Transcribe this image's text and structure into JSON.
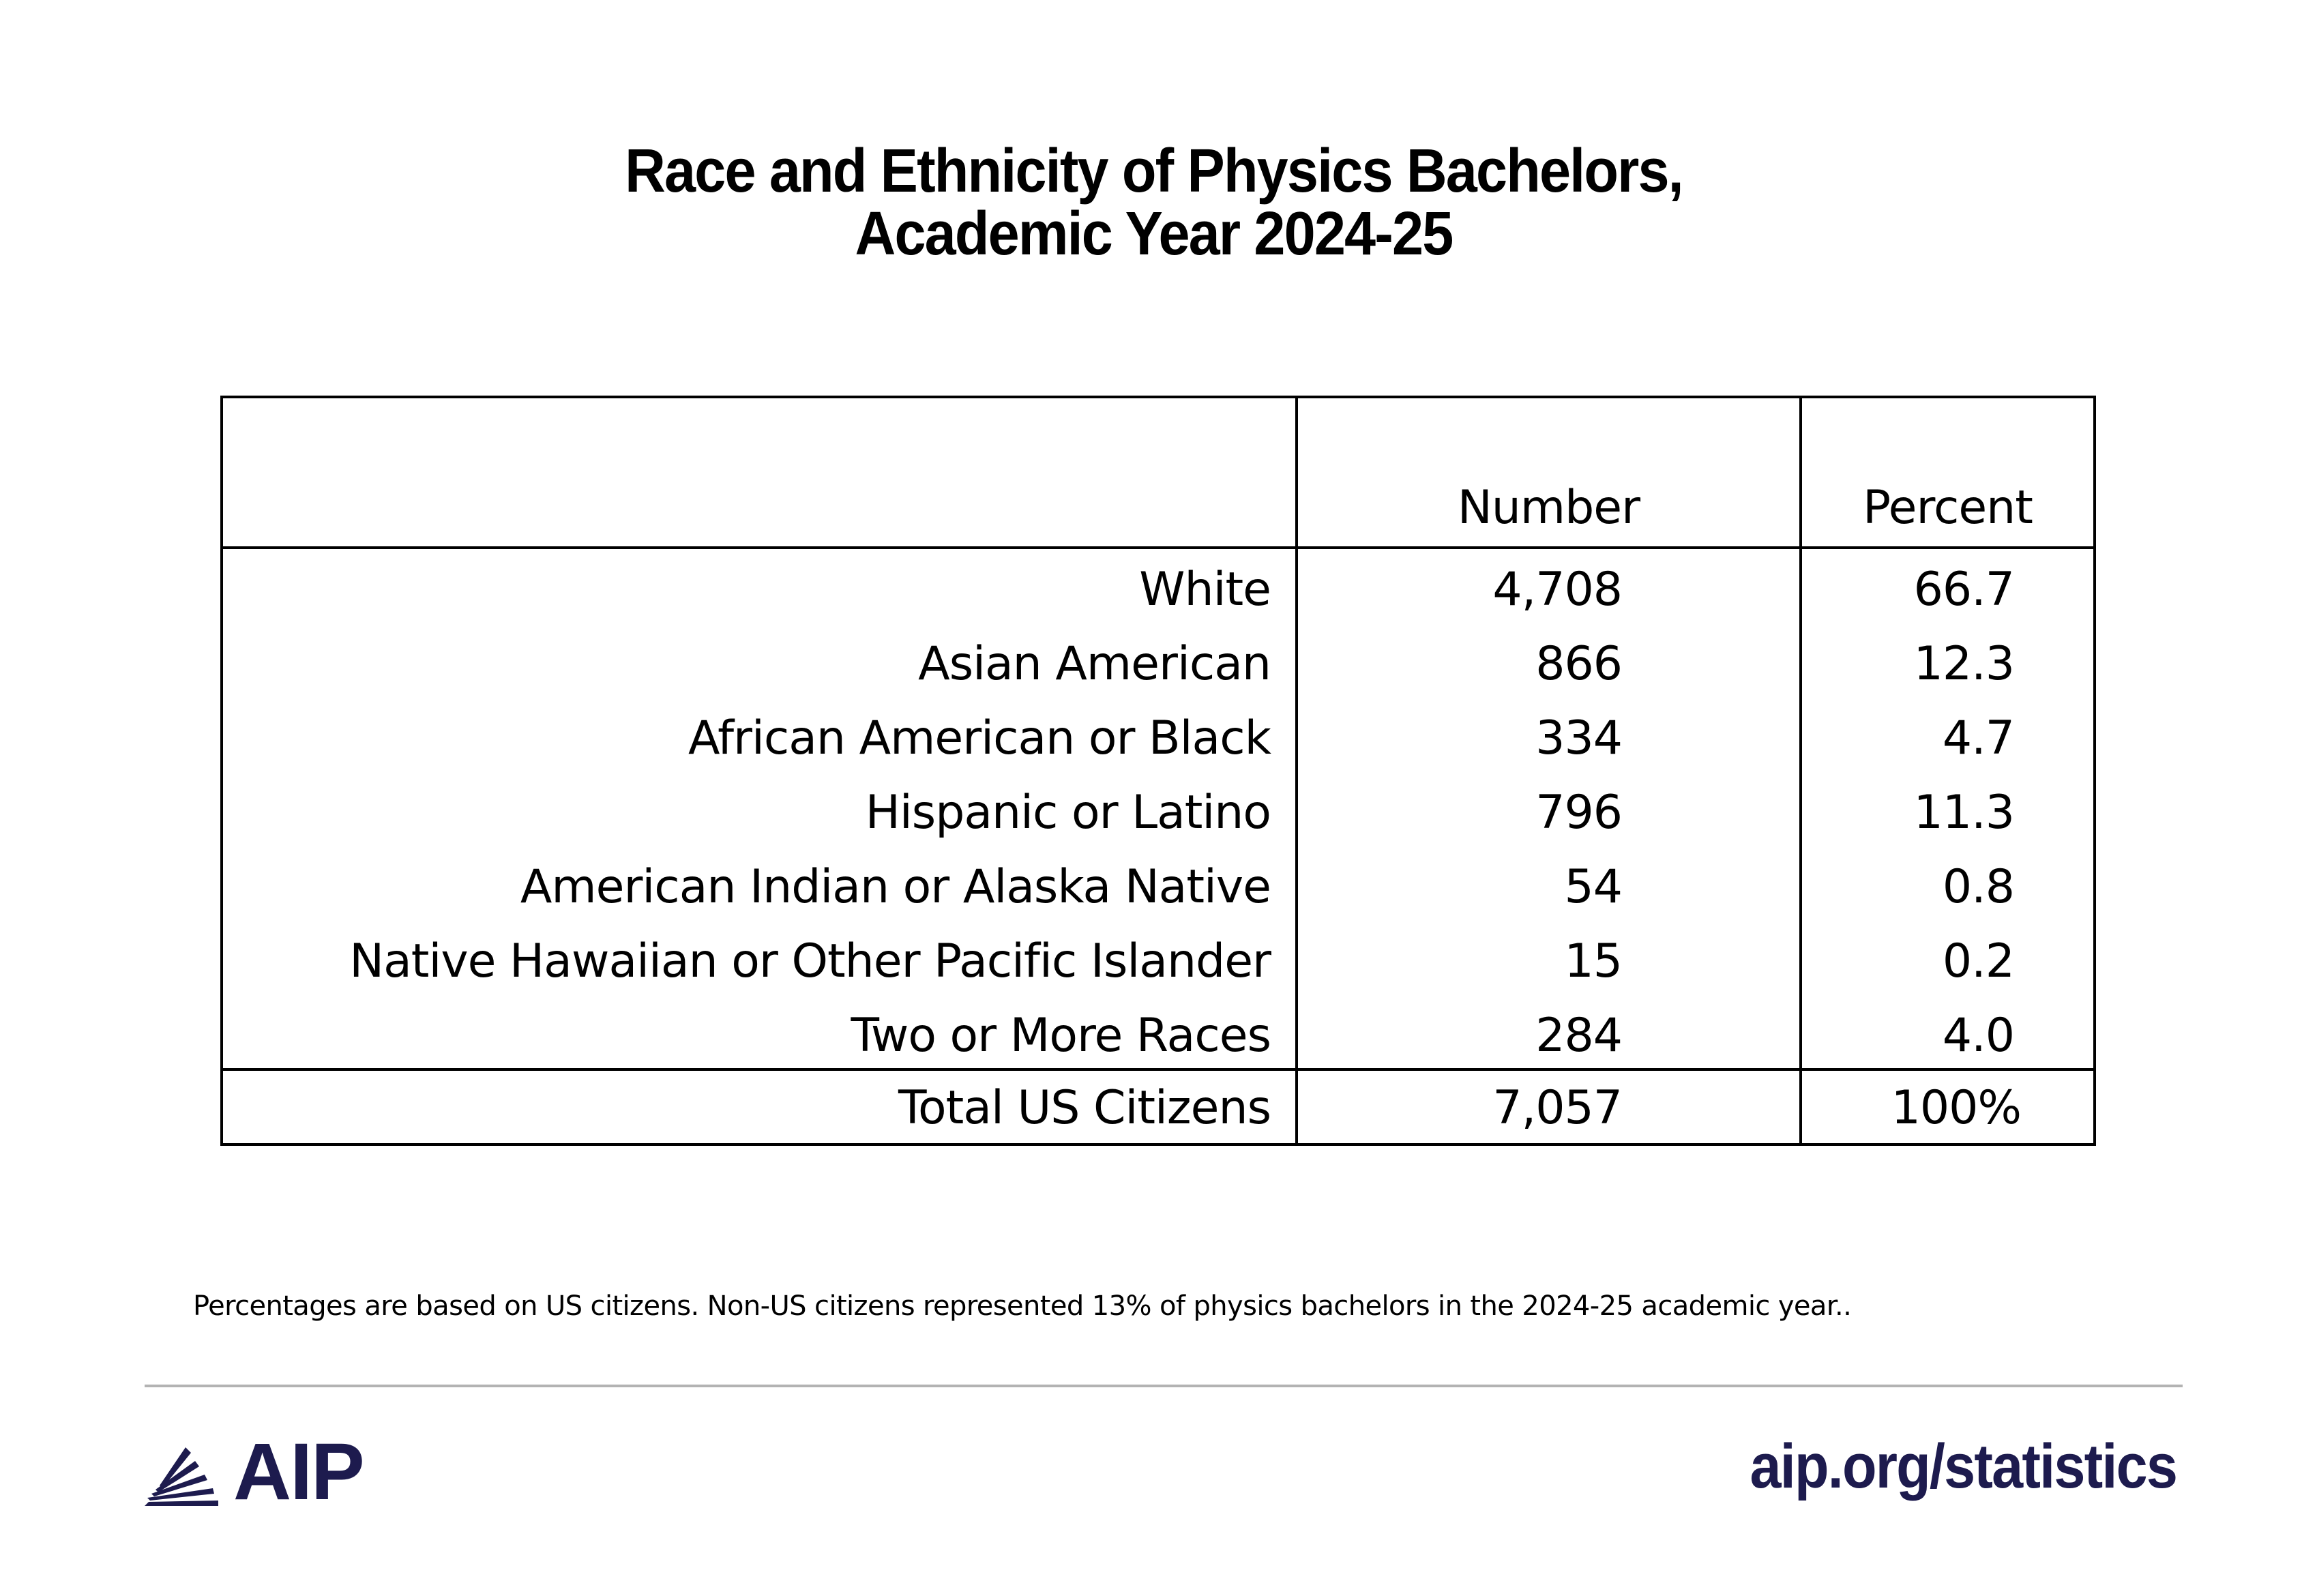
{
  "title_line1": "Race and Ethnicity of Physics Bachelors,",
  "title_line2": "Academic Year 2024-25",
  "chart_data": {
    "type": "table",
    "columns": [
      "",
      "Number",
      "Percent"
    ],
    "rows": [
      {
        "label": "White",
        "number": "4,708",
        "percent": "66.7"
      },
      {
        "label": "Asian American",
        "number": "866",
        "percent": "12.3"
      },
      {
        "label": "African American or Black",
        "number": "334",
        "percent": "4.7"
      },
      {
        "label": "Hispanic or Latino",
        "number": "796",
        "percent": "11.3"
      },
      {
        "label": "American Indian or Alaska Native",
        "number": "54",
        "percent": "0.8"
      },
      {
        "label": "Native Hawaiian or Other Pacific Islander",
        "number": "15",
        "percent": "0.2"
      },
      {
        "label": "Two or More Races",
        "number": "284",
        "percent": "4.0"
      }
    ],
    "total": {
      "label": "Total US Citizens",
      "number": "7,057",
      "percent": "100%"
    }
  },
  "footnote": "Percentages are based on US citizens. Non-US citizens represented 13% of physics bachelors in the 2024-25 academic year..",
  "logo": {
    "text": "AIP",
    "icon": "aip-rays-icon"
  },
  "url": "aip.org/statistics",
  "colors": {
    "brand": "#1d1b4e",
    "rule": "#b3b3b3"
  }
}
